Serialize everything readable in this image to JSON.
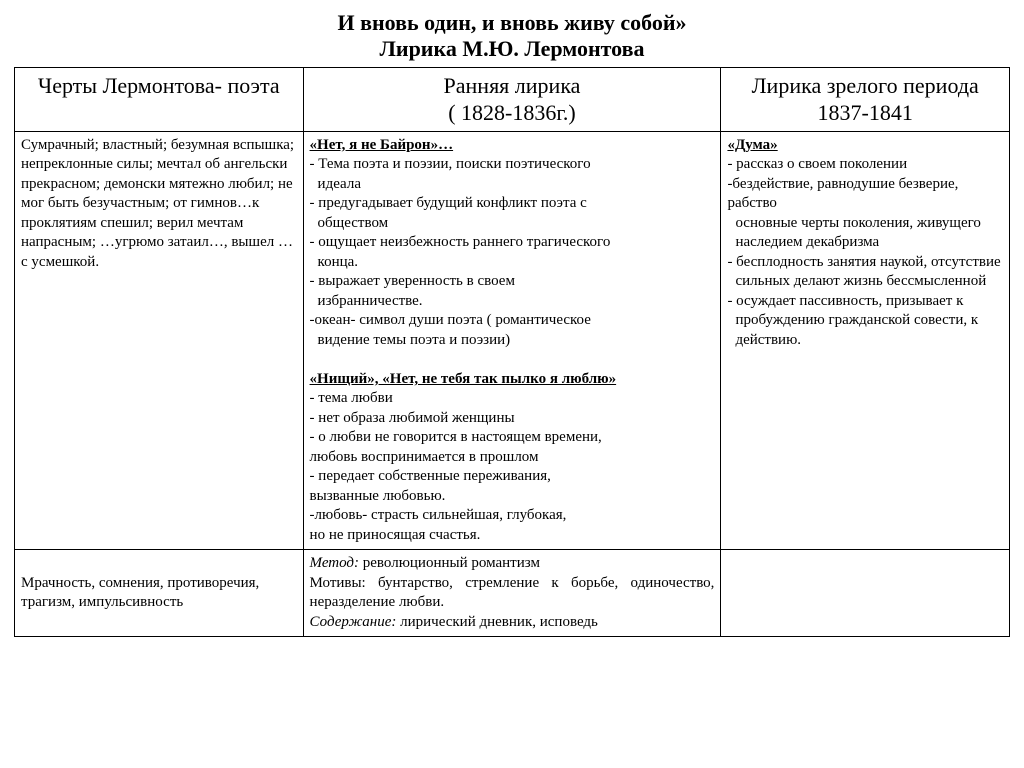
{
  "title_line1": "И вновь один, и вновь живу собой»",
  "title_line2": "Лирика М.Ю. Лермонтова",
  "headers": {
    "col1": "Черты Лермонтова- поэта",
    "col2_line1": "Ранняя лирика",
    "col2_line2": "( 1828-1836г.)",
    "col3_line1": "Лирика зрелого периода",
    "col3_line2": "1837-1841"
  },
  "row1": {
    "col1": "Сумрачный; властный; безумная вспышка; непреклонные силы; мечтал об ангельски прекрасном; демонски мятежно любил; не мог быть безучастным; от гимнов…к проклятиям спешил; верил мечтам напрасным; …угрюмо затаил…, вышел … с усмешкой.",
    "col2": {
      "h1": "«Нет, я не Байрон»…",
      "p1": "- Тема поэта и поэзии, поиски поэтического",
      "p1b": "идеала",
      "p2": "- предугадывает будущий конфликт поэта с",
      "p2b": "обществом",
      "p3": "- ощущает неизбежность раннего трагического",
      "p3b": "конца.",
      "p4": "- выражает уверенность в своем",
      "p4b": "избранничестве.",
      "p5": "-океан- символ  души поэта ( романтическое",
      "p5b": "видение темы поэта и поэзии)",
      "h2": "«Нищий», «Нет, не тебя так пылко я люблю»",
      "q1": "- тема любви",
      "q2": "- нет образа любимой женщины",
      "q3": "- о любви не говорится в настоящем времени,",
      "q3b": "любовь воспринимается  в прошлом",
      "q4": "- передает собственные переживания,",
      "q4b": "вызванные любовью.",
      "q5": "-любовь- страсть сильнейшая, глубокая,",
      "q5b": "но не приносящая счастья."
    },
    "col3": {
      "h1": "«Дума»",
      "p1": "- рассказ  о своем поколении",
      "p2": "-бездействие, равнодушие безверие, рабство",
      "p2b": "основные черты поколения, живущего",
      "p2c": "наследием декабризма",
      "p3": "- бесплодность занятия наукой, отсутствие",
      "p3b": "сильных делают жизнь бессмысленной",
      "p4": "- осуждает пассивность, призывает к",
      "p4b": "пробуждению гражданской совести, к",
      "p4c": "действию."
    }
  },
  "row2": {
    "col1": "Мрачность, сомнения, противоречия, трагизм, импульсивность",
    "col2": {
      "m_label": "Метод:",
      "m_text": " революционный романтизм",
      "motives": "Мотивы: бунтарство, стремление к борьбе, одиночество, неразделение любви.",
      "c_label": "Содержание:",
      "c_text": " лирический дневник, исповедь"
    },
    "col3": ""
  }
}
